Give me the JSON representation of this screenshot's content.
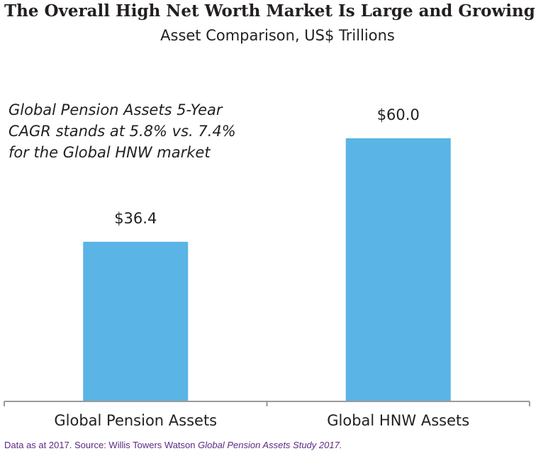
{
  "header": {
    "title": "The Overall High Net Worth Market Is Large and Growing",
    "subtitle": "Asset Comparison, US$ Trillions"
  },
  "annotation": "Global Pension Assets 5-Year CAGR stands at 5.8% vs. 7.4% for the Global HNW market",
  "source": {
    "prefix": "Data as at 2017. Source: Willis Towers Watson ",
    "italic": "Global Pension Assets Study 2017."
  },
  "colors": {
    "bar": "#5ab4e5",
    "axis": "#9a9a9a",
    "source_text": "#5b2a86"
  },
  "chart_data": {
    "type": "bar",
    "categories": [
      "Global Pension Assets",
      "Global HNW Assets"
    ],
    "values": [
      36.4,
      60.0
    ],
    "value_labels": [
      "$36.4",
      "$60.0"
    ],
    "title": "The Overall High Net Worth Market Is Large and Growing",
    "subtitle": "Asset Comparison, US$ Trillions",
    "xlabel": "",
    "ylabel": "",
    "ylim": [
      0,
      60
    ],
    "grid": false,
    "legend": "none"
  }
}
